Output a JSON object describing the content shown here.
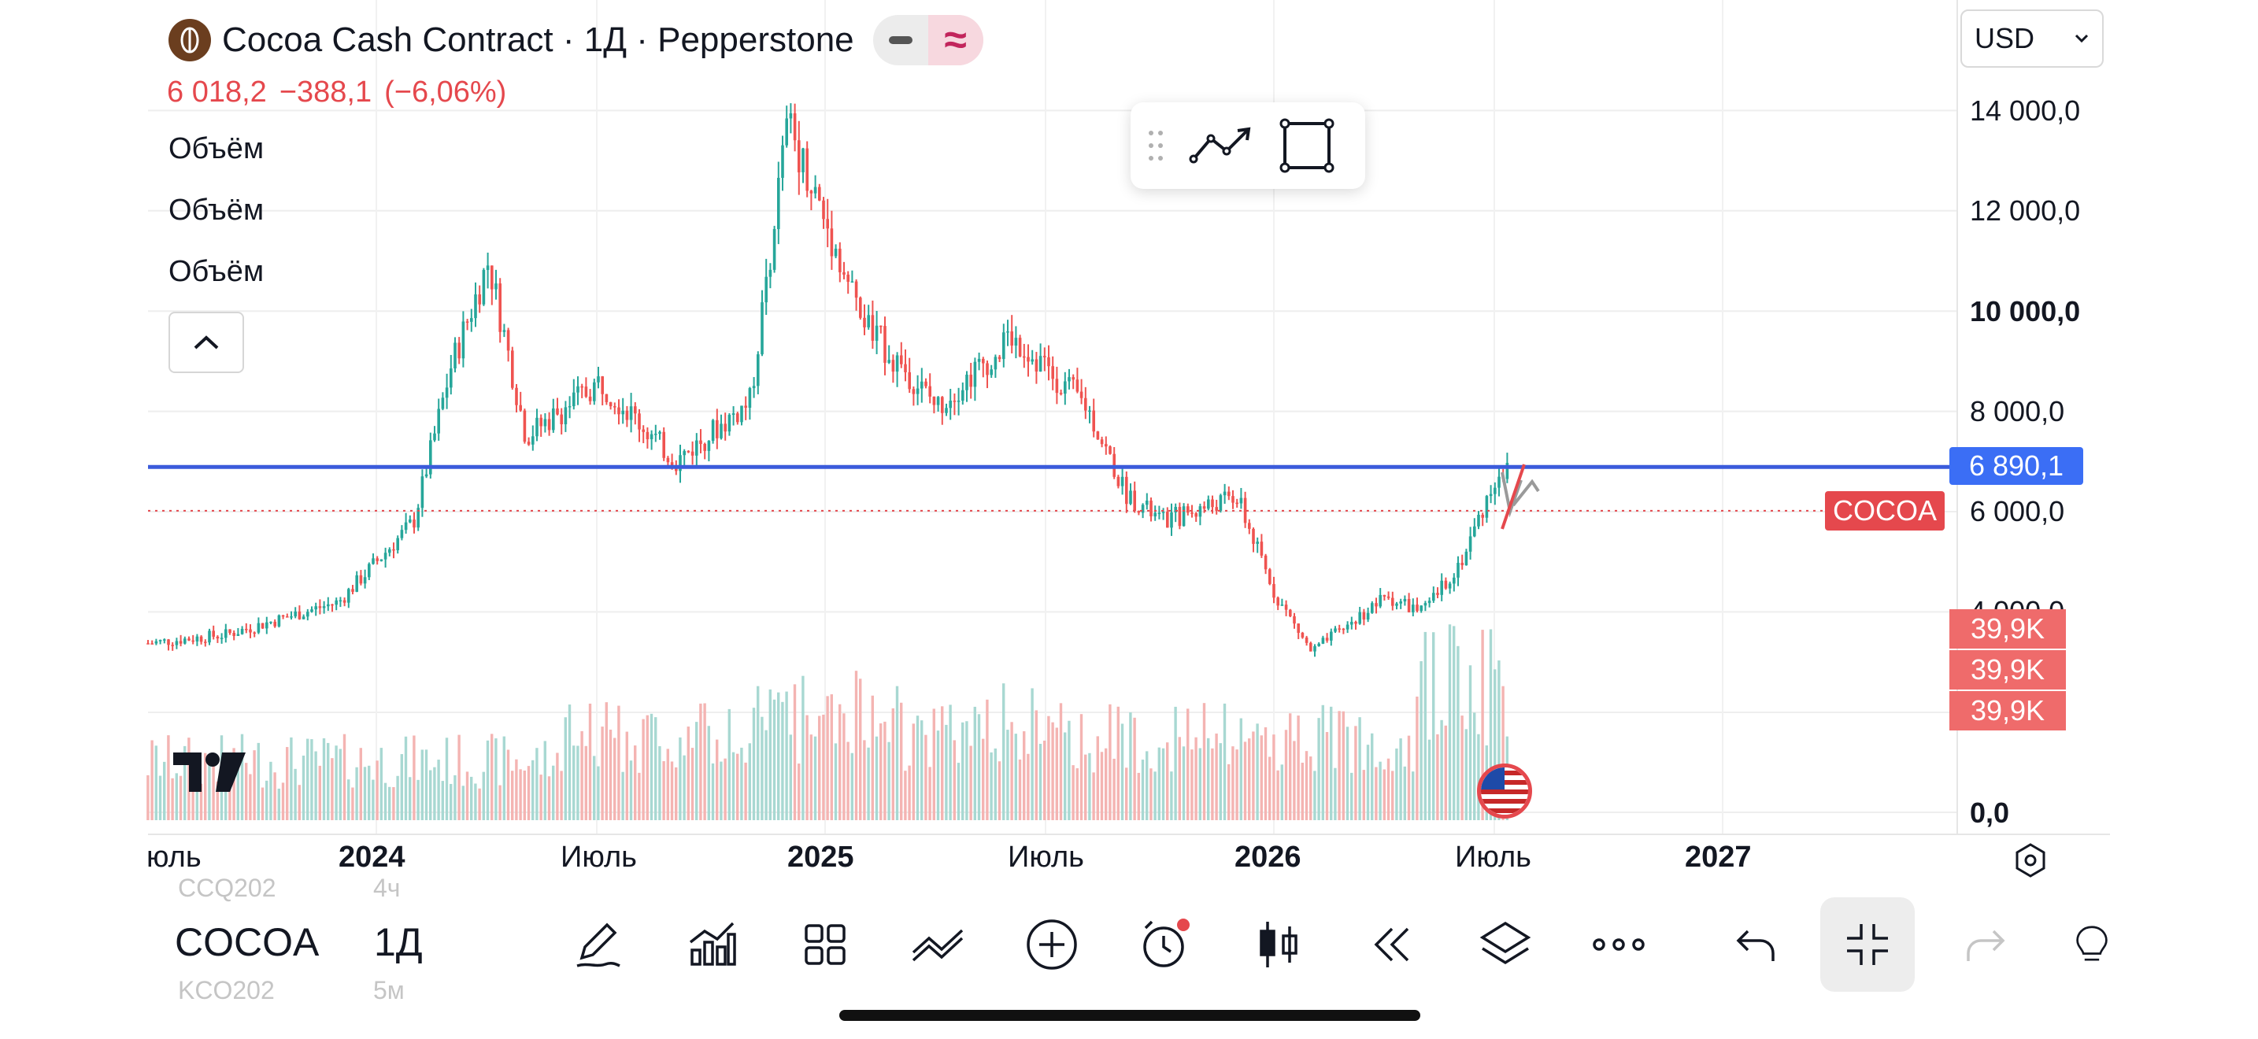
{
  "header": {
    "title": "Cocoa Cash Contract · 1Д · Pepperstone",
    "price": "6 018,2",
    "change": "−388,1",
    "change_pct": "(−6,06%)",
    "indicator_labels": [
      "Объём",
      "Объём",
      "Объём"
    ]
  },
  "currency": {
    "value": "USD"
  },
  "price_axis": {
    "labels": [
      "14 000,0",
      "12 000,0",
      "10 000,0",
      "8 000,0",
      "6 000,0",
      "4 000,0",
      "0,0"
    ]
  },
  "tags": {
    "line_price": "6 890,1",
    "symbol": "COCOA",
    "volume": [
      "39,9K",
      "39,9K",
      "39,9K"
    ]
  },
  "time_axis": {
    "labels": [
      "юль",
      "2024",
      "Июль",
      "2025",
      "Июль",
      "2026",
      "Июль",
      "2027"
    ]
  },
  "bottom_bar": {
    "symbol": "COCOA",
    "timeframe": "1Д",
    "ghost_above": {
      "symbol": "CCQ202",
      "tf": "4ч"
    },
    "ghost_below": {
      "symbol": "KCO202",
      "tf": "5м"
    }
  },
  "colors": {
    "up": "#26a69a",
    "down": "#ef5350",
    "horizontal_line": "#3b5bdb",
    "price_tag": "#e5484d",
    "line_tag": "#3b6ef5"
  },
  "icons": [
    "pencil-icon",
    "indicators-icon",
    "layout-icon",
    "compare-icon",
    "add-icon",
    "alert-icon",
    "candle-type-icon",
    "replay-icon",
    "layers-icon",
    "more-icon",
    "undo-icon",
    "fullscreen-exit-icon",
    "redo-icon"
  ],
  "chart_data": {
    "type": "candlestick",
    "symbol": "COCOA",
    "interval": "1D",
    "price_range": [
      0,
      14500
    ],
    "horizontal_line": 6890.1,
    "last_price": 6018.2,
    "x_ticks": [
      "юль",
      "2024",
      "Июль",
      "2025",
      "Июль",
      "2026",
      "Июль",
      "2027"
    ],
    "series": [
      {
        "name": "",
        "x": [
          "2023-06",
          "2023-09",
          "2023-12",
          "2024-02",
          "2024-03",
          "2024-04",
          "2024-05",
          "2024-07",
          "2024-09",
          "2024-11",
          "2024-12",
          "2025-02",
          "2025-04",
          "2025-06",
          "2025-08",
          "2025-09",
          "2025-10",
          "2025-12",
          "2026-01",
          "2026-02",
          "2026-04",
          "2026-05",
          "2026-06",
          "2026-07"
        ],
        "values": [
          3300,
          3550,
          4200,
          5800,
          8900,
          11000,
          7500,
          8600,
          7000,
          8200,
          13800,
          9800,
          8100,
          9500,
          8100,
          6400,
          5800,
          6300,
          4400,
          3200,
          4300,
          4000,
          5000,
          6800
        ]
      }
    ]
  }
}
